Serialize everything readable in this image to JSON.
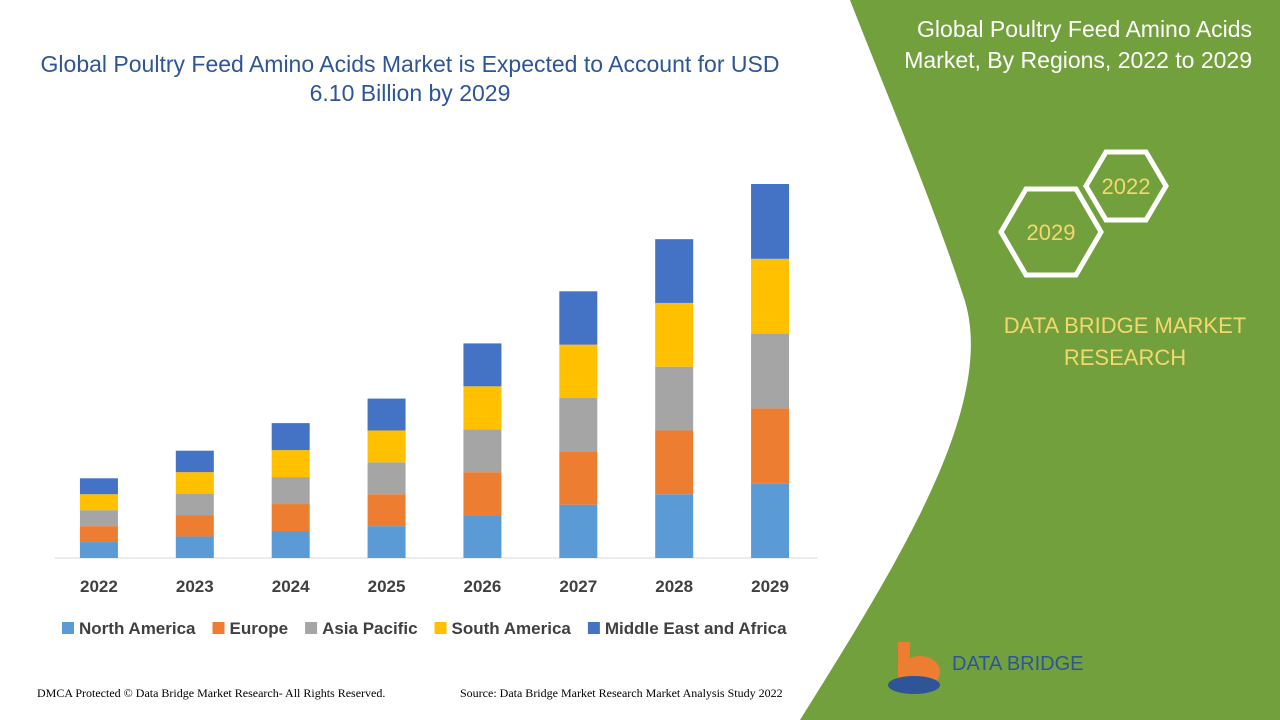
{
  "chart_data": {
    "type": "bar",
    "stacked": true,
    "title": "Global Poultry Feed Amino Acids Market is Expected to Account for USD 6.10 Billion by 2029",
    "categories": [
      "2022",
      "2023",
      "2024",
      "2025",
      "2026",
      "2027",
      "2028",
      "2029"
    ],
    "series": [
      {
        "name": "North America",
        "color": "#5b9bd5",
        "values": [
          0.26,
          0.35,
          0.44,
          0.52,
          0.7,
          0.87,
          1.04,
          1.22
        ]
      },
      {
        "name": "Europe",
        "color": "#ed7d31",
        "values": [
          0.26,
          0.35,
          0.44,
          0.52,
          0.7,
          0.87,
          1.04,
          1.22
        ]
      },
      {
        "name": "Asia Pacific",
        "color": "#a5a5a5",
        "values": [
          0.26,
          0.35,
          0.44,
          0.52,
          0.7,
          0.87,
          1.04,
          1.22
        ]
      },
      {
        "name": "South America",
        "color": "#ffc000",
        "values": [
          0.26,
          0.35,
          0.44,
          0.52,
          0.7,
          0.87,
          1.04,
          1.22
        ]
      },
      {
        "name": "Middle East and Africa",
        "color": "#4472c4",
        "values": [
          0.26,
          0.35,
          0.44,
          0.52,
          0.7,
          0.87,
          1.04,
          1.22
        ]
      }
    ],
    "legend": "bottom"
  },
  "panel": {
    "title": "Global Poultry Feed Amino Acids Market, By Regions, 2022 to 2029",
    "hex_1": "2022",
    "hex_2": "2029",
    "brand": "DATA BRIDGE MARKET RESEARCH"
  },
  "logo": {
    "name": "DATA BRIDGE"
  },
  "footer": {
    "left": "DMCA Protected © Data Bridge Market Research- All Rights Reserved.",
    "right": "Source: Data Bridge Market Research Market Analysis Study 2022"
  }
}
